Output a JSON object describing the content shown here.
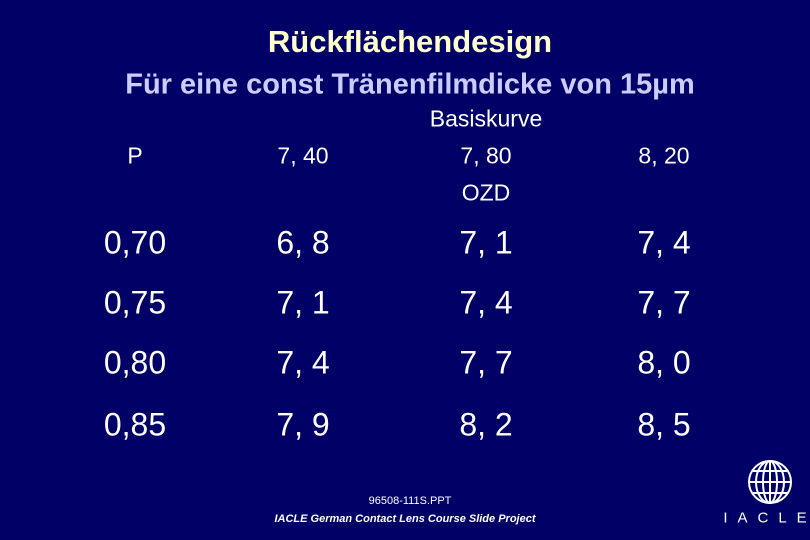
{
  "header": {
    "title": "Rückflächendesign",
    "subtitle": "Für eine const Tränenfilmdicke von 15µm"
  },
  "table": {
    "header": [
      [
        "P"
      ],
      [
        "7, 40"
      ],
      [
        "Basiskurve",
        "7, 80",
        "OZD"
      ],
      [
        "8, 20"
      ]
    ],
    "rows": [
      [
        "0,70",
        "6, 8",
        "7, 1",
        "7, 4"
      ],
      [
        "0,75",
        "7, 1",
        "7, 4",
        "7, 7"
      ],
      [
        "0,80",
        "7, 4",
        "7, 7",
        "8, 0"
      ],
      [
        "0,85",
        "7, 9",
        "8, 2",
        "8, 5"
      ]
    ]
  },
  "footer": {
    "file": "96508-111S.PPT",
    "project": "IACLE German Contact Lens Course Slide Project",
    "logo": "IACLE"
  }
}
